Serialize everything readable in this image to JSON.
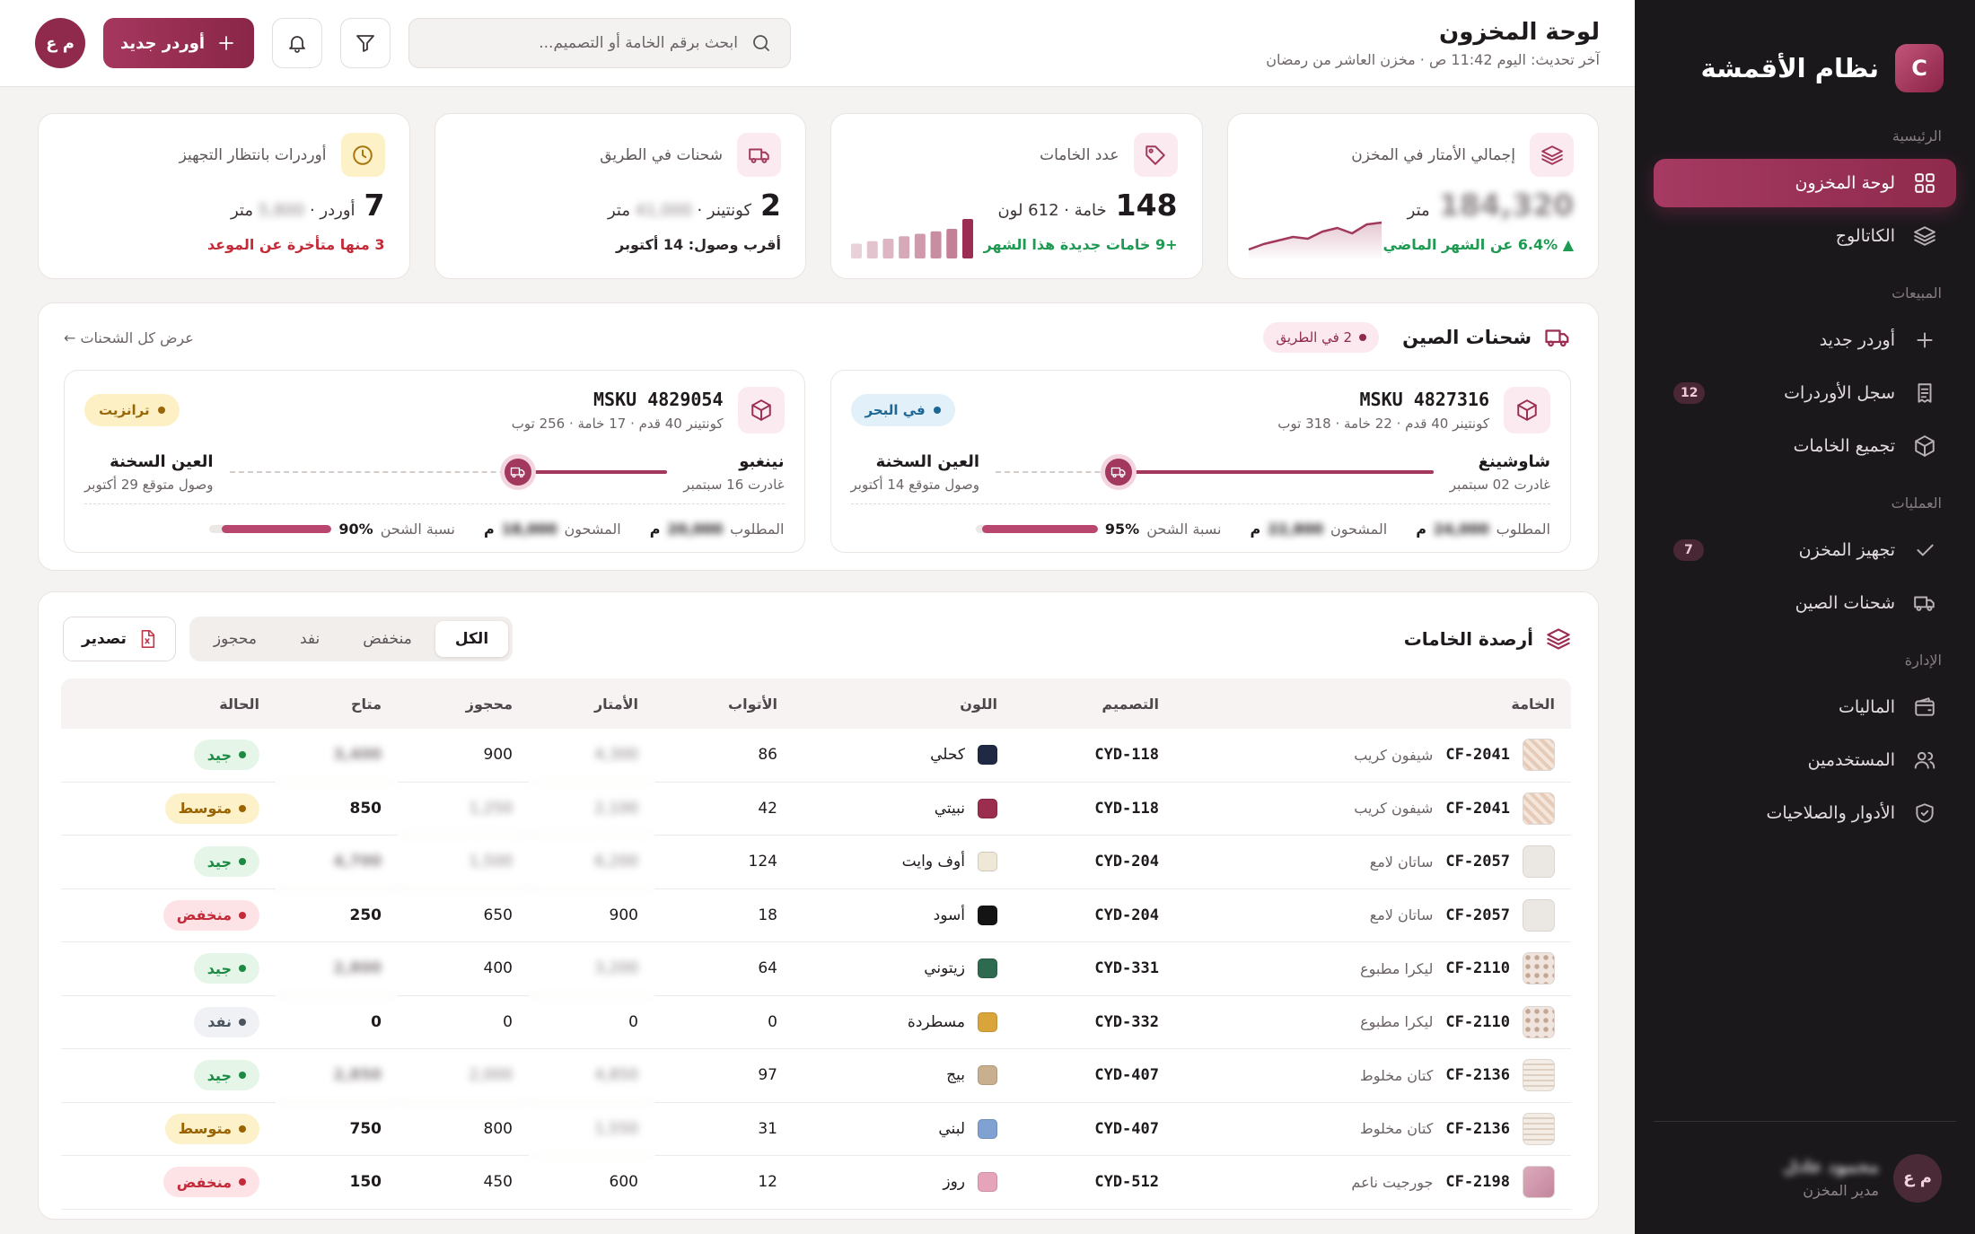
{
  "sidebar": {
    "logo": "C",
    "title": "نظام الأقمشة",
    "sections": [
      {
        "label": "الرئيسية",
        "items": [
          {
            "label": "لوحة المخزون",
            "active": true
          },
          {
            "label": "الكاتالوج"
          }
        ]
      },
      {
        "label": "المبيعات",
        "items": [
          {
            "label": "أوردر جديد"
          },
          {
            "label": "سجل الأوردرات",
            "badge": 12
          },
          {
            "label": "تجميع الخامات"
          }
        ]
      },
      {
        "label": "العمليات",
        "items": [
          {
            "label": "تجهيز المخزن",
            "badge": 7
          },
          {
            "label": "شحنات الصين"
          }
        ]
      },
      {
        "label": "الإدارة",
        "items": [
          {
            "label": "الماليات"
          },
          {
            "label": "المستخدمين"
          },
          {
            "label": "الأدوار والصلاحيات"
          }
        ]
      }
    ],
    "user": {
      "initials": "م ع",
      "name": "محمود عادل",
      "role": "مدير المخزن"
    }
  },
  "header": {
    "title": "لوحة المخزون",
    "subtitle": "آخر تحديث: اليوم 11:42 ص · مخزن العاشر من رمضان",
    "search_placeholder": "ابحث برقم الخامة أو التصميم...",
    "new_order": "أوردر جديد",
    "avatar": "م ع"
  },
  "kpis": [
    {
      "label": "إجمالي الأمتار في المخزن",
      "value": "184,320",
      "value_masked": true,
      "unit": "متر",
      "footnote": "▲ 6.4% عن الشهر الماضي",
      "tone": "up",
      "color": "#a3385e",
      "sparkline": [
        4,
        7,
        9,
        11,
        10,
        14,
        16,
        13,
        18,
        19
      ]
    },
    {
      "label": "عدد الخامات",
      "value": 148,
      "unit": "خامة · 612 لون",
      "footnote": "+9 خامات جديدة هذا الشهر",
      "tone": "up",
      "color": "#9b2d52",
      "bars": [
        12,
        14,
        16,
        18,
        20,
        22,
        24,
        32
      ]
    },
    {
      "label": "شحنات في الطريق",
      "value": 2,
      "unit_prefix": "كونتينر ·",
      "hidden": "41,000",
      "unit": "متر",
      "footnote": "أقرب وصول: 14 أكتوبر",
      "tone": "neutral"
    },
    {
      "label": "أوردرات بانتظار التجهيز",
      "value": 7,
      "unit_prefix": "أوردر ·",
      "hidden": "5,800",
      "unit": "متر",
      "footnote": "3 منها متأخرة عن الموعد",
      "tone": "alert"
    }
  ],
  "shipments": {
    "title": "شحنات الصين",
    "badge": "2 في الطريق",
    "view_all": "عرض كل الشحنات ←",
    "items": [
      {
        "id": "MSKU 4827316",
        "desc": "كونتينر 40 قدم · 22 خامة · 318 توب",
        "status": "في البحر",
        "tone": "sea",
        "from": "شاوشينغ",
        "from_note": "غادرت 02 سبتمبر",
        "to": "العين السخنة",
        "to_note": "وصول متوقع 14 أكتوبر",
        "route_progress": 72,
        "required_label": "المطلوب",
        "required": "24,000",
        "shipped_label": "المشحون",
        "shipped": "22,800",
        "unit": "م",
        "pct_label": "نسبة الشحن",
        "pct": {
          "value": 95,
          "label": "95%"
        }
      },
      {
        "id": "MSKU 4829054",
        "desc": "كونتينر 40 قدم · 17 خامة · 256 توب",
        "status": "ترانزيت",
        "tone": "transit",
        "from": "نينغبو",
        "from_note": "غادرت 16 سبتمبر",
        "to": "العين السخنة",
        "to_note": "وصول متوقع 29 أكتوبر",
        "route_progress": 34,
        "required_label": "المطلوب",
        "required": "20,000",
        "shipped_label": "المشحون",
        "shipped": "18,000",
        "unit": "م",
        "pct_label": "نسبة الشحن",
        "pct": {
          "value": 90,
          "label": "90%"
        }
      }
    ]
  },
  "table": {
    "title": "أرصدة الخامات",
    "tabs": [
      "الكل",
      "منخفض",
      "نفد",
      "محجوز"
    ],
    "active_tab": 0,
    "export": "تصدير",
    "columns": [
      "الخامة",
      "التصميم",
      "اللون",
      "الأتواب",
      "الأمتار",
      "محجوز",
      "متاح",
      "الحالة"
    ],
    "rows": [
      {
        "code": "CF-2041",
        "name": "شيفون كريب",
        "thumb": "diag",
        "design": "CYD-118",
        "color": "كحلي",
        "swatch": "#1f2944",
        "rolls": 86,
        "meters": "4,300",
        "reserved": 900,
        "available": "3,400",
        "status": "جيد",
        "tone": "good",
        "masked": [
          "meters",
          "available"
        ]
      },
      {
        "code": "CF-2041",
        "name": "شيفون كريب",
        "thumb": "diag",
        "design": "CYD-118",
        "color": "نبيتي",
        "swatch": "#9b2d4e",
        "rolls": 42,
        "meters": "2,100",
        "reserved": "1,250",
        "available": 850,
        "status": "متوسط",
        "tone": "mid",
        "masked": [
          "meters",
          "reserved"
        ]
      },
      {
        "code": "CF-2057",
        "name": "ساتان لامع",
        "thumb": "plain",
        "design": "CYD-204",
        "color": "أوف وايت",
        "swatch": "#efe8d6",
        "rolls": 124,
        "meters": "6,200",
        "reserved": "1,500",
        "available": "4,700",
        "status": "جيد",
        "tone": "good",
        "masked": [
          "meters",
          "reserved",
          "available"
        ]
      },
      {
        "code": "CF-2057",
        "name": "ساتان لامع",
        "thumb": "plain",
        "design": "CYD-204",
        "color": "أسود",
        "swatch": "#141414",
        "rolls": 18,
        "meters": 900,
        "reserved": 650,
        "available": 250,
        "status": "منخفض",
        "tone": "low",
        "masked": []
      },
      {
        "code": "CF-2110",
        "name": "ليكرا مطبوع",
        "thumb": "dots",
        "design": "CYD-331",
        "color": "زيتوني",
        "swatch": "#2e6a4f",
        "rolls": 64,
        "meters": "3,200",
        "reserved": 400,
        "available": "2,800",
        "status": "جيد",
        "tone": "good",
        "masked": [
          "meters",
          "available"
        ]
      },
      {
        "code": "CF-2110",
        "name": "ليكرا مطبوع",
        "thumb": "dots",
        "design": "CYD-332",
        "color": "مسطردة",
        "swatch": "#d9a53a",
        "rolls": 0,
        "meters": 0,
        "reserved": 0,
        "available": 0,
        "status": "نفد",
        "tone": "out",
        "masked": []
      },
      {
        "code": "CF-2136",
        "name": "كتان مخلوط",
        "thumb": "lines",
        "design": "CYD-407",
        "color": "بيج",
        "swatch": "#c8af8e",
        "rolls": 97,
        "meters": "4,850",
        "reserved": "2,000",
        "available": "2,850",
        "status": "جيد",
        "tone": "good",
        "masked": [
          "meters",
          "reserved",
          "available"
        ]
      },
      {
        "code": "CF-2136",
        "name": "كتان مخلوط",
        "thumb": "lines",
        "design": "CYD-407",
        "color": "لبني",
        "swatch": "#7fa2d2",
        "rolls": 31,
        "meters": "1,550",
        "reserved": 800,
        "available": 750,
        "status": "متوسط",
        "tone": "mid",
        "masked": [
          "meters"
        ]
      },
      {
        "code": "CF-2198",
        "name": "جورجيت ناعم",
        "thumb": "rose",
        "design": "CYD-512",
        "color": "روز",
        "swatch": "#e6a4ba",
        "rolls": 12,
        "meters": 600,
        "reserved": 450,
        "available": 150,
        "status": "منخفض",
        "tone": "low",
        "masked": []
      }
    ]
  }
}
